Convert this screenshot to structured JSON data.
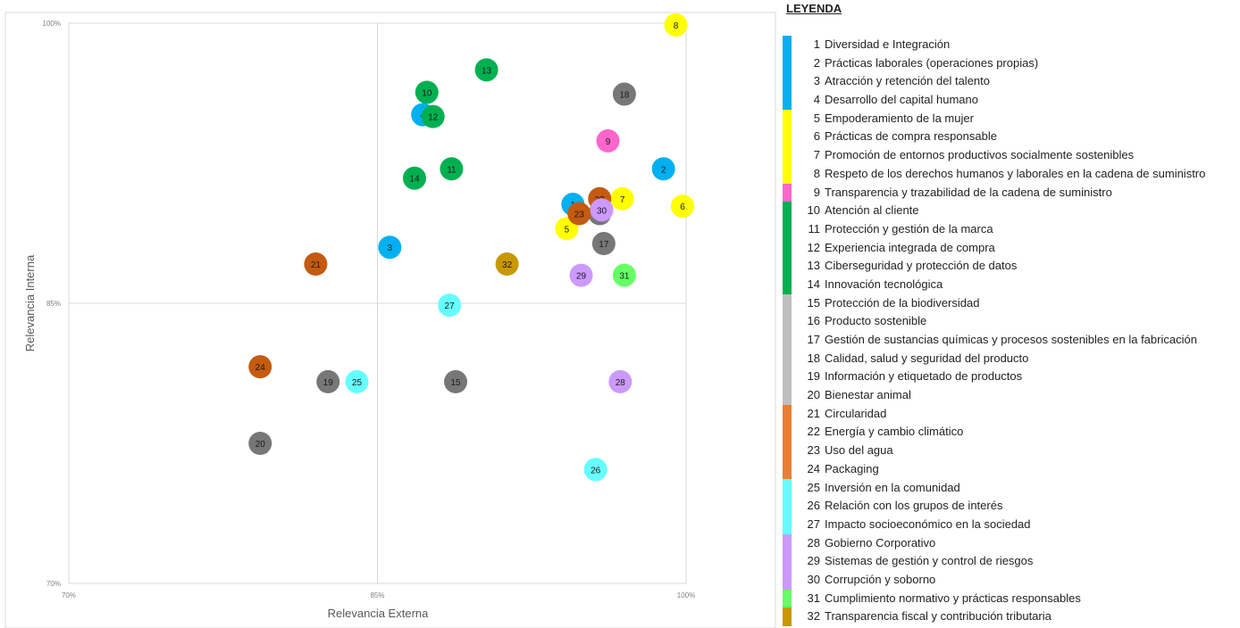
{
  "chart_data": {
    "type": "scatter",
    "xlabel": "Relevancia Externa",
    "ylabel": "Relevancia Interna",
    "xlim": [
      70,
      100
    ],
    "ylim": [
      70,
      100
    ],
    "x_ticks": [
      "70%",
      "85%",
      "100%"
    ],
    "y_ticks": [
      "70%",
      "85%",
      "100%"
    ],
    "divider_x": 85,
    "divider_y": 85,
    "legend_title": "LEYENDA",
    "legend_position": "right",
    "groups": [
      {
        "color": "#00B0F0",
        "items": [
          1,
          2,
          3,
          4
        ]
      },
      {
        "color": "#FFFF00",
        "items": [
          5,
          6,
          7,
          8
        ]
      },
      {
        "color": "#FF66CC",
        "items": [
          9
        ]
      },
      {
        "color": "#00B050",
        "items": [
          10,
          11,
          12,
          13,
          14
        ]
      },
      {
        "color": "#BFBFBF",
        "items": [
          15,
          16,
          17,
          18,
          19,
          20
        ]
      },
      {
        "color": "#ED7D31",
        "items": [
          21,
          22,
          23,
          24
        ]
      },
      {
        "color": "#66FFFF",
        "items": [
          25,
          26,
          27
        ]
      },
      {
        "color": "#CC99FF",
        "items": [
          28,
          29,
          30
        ]
      },
      {
        "color": "#66FF66",
        "items": [
          31
        ]
      },
      {
        "color": "#C89800",
        "items": [
          32
        ]
      }
    ],
    "points": [
      {
        "id": "1",
        "label": "Diversidad e Integración",
        "x": 94.5,
        "y": 90.3,
        "color": "#00B0F0"
      },
      {
        "id": "2",
        "label": "Prácticas laborales (operaciones propias)",
        "x": 98.9,
        "y": 92.2,
        "color": "#00B0F0"
      },
      {
        "id": "3",
        "label": "Atracción y retención del talento",
        "x": 85.6,
        "y": 88.0,
        "color": "#00B0F0"
      },
      {
        "id": "4",
        "label": "Desarrollo del capital humano",
        "x": 87.2,
        "y": 95.1,
        "color": "#00B0F0"
      },
      {
        "id": "5",
        "label": "Empoderamiento de la mujer",
        "x": 94.2,
        "y": 89.0,
        "color": "#FFFF00"
      },
      {
        "id": "6",
        "label": "Prácticas de compra responsable",
        "x": 100.0,
        "y": 90.2,
        "color": "#FFFF00"
      },
      {
        "id": "7",
        "label": "Promoción de entornos productivos socialmente sostenibles",
        "x": 96.9,
        "y": 90.6,
        "color": "#FFFF00"
      },
      {
        "id": "8",
        "label": "Respeto de los derechos humanos y laborales en la cadena de suministro",
        "x": 99.5,
        "y": 100.0,
        "color": "#FFFF00"
      },
      {
        "id": "9",
        "label": "Transparencia y trazabilidad de la cadena de suministro",
        "x": 96.2,
        "y": 93.7,
        "color": "#FF66CC"
      },
      {
        "id": "10",
        "label": "Atención al cliente",
        "x": 87.4,
        "y": 96.3,
        "color": "#00B050"
      },
      {
        "id": "11",
        "label": "Protección  y gestión de la marca",
        "x": 88.6,
        "y": 92.2,
        "color": "#00B050"
      },
      {
        "id": "12",
        "label": "Experiencia integrada de compra",
        "x": 87.7,
        "y": 95.0,
        "color": "#00B050"
      },
      {
        "id": "13",
        "label": "Ciberseguridad y protección de datos",
        "x": 90.3,
        "y": 97.5,
        "color": "#00B050"
      },
      {
        "id": "14",
        "label": "Innovación tecnológica",
        "x": 86.8,
        "y": 91.7,
        "color": "#00B050"
      },
      {
        "id": "15",
        "label": "Protección de la biodiversidad",
        "x": 88.8,
        "y": 80.8,
        "color": "#777777"
      },
      {
        "id": "16",
        "label": "Producto sostenible",
        "x": 95.8,
        "y": 89.8,
        "color": "#777777"
      },
      {
        "id": "17",
        "label": "Gestión de sustancias químicas y procesos sostenibles en la fabricación",
        "x": 96.0,
        "y": 88.2,
        "color": "#777777"
      },
      {
        "id": "18",
        "label": "Calidad, salud y seguridad del producto",
        "x": 97.0,
        "y": 96.2,
        "color": "#777777"
      },
      {
        "id": "19",
        "label": "Información y etiquetado de productos",
        "x": 82.6,
        "y": 80.8,
        "color": "#777777"
      },
      {
        "id": "20",
        "label": "Bienestar animal",
        "x": 79.3,
        "y": 77.5,
        "color": "#777777"
      },
      {
        "id": "21",
        "label": "Circularidad",
        "x": 82.0,
        "y": 87.1,
        "color": "#C55A11"
      },
      {
        "id": "22",
        "label": "Energía y cambio climático",
        "x": 95.8,
        "y": 90.6,
        "color": "#C55A11"
      },
      {
        "id": "23",
        "label": "Uso del agua",
        "x": 94.8,
        "y": 89.8,
        "color": "#C55A11"
      },
      {
        "id": "24",
        "label": "Packaging",
        "x": 79.3,
        "y": 81.6,
        "color": "#C55A11"
      },
      {
        "id": "25",
        "label": "Inversión en la comunidad",
        "x": 84.0,
        "y": 80.8,
        "color": "#66FFFF"
      },
      {
        "id": "26",
        "label": "Relación con los grupos de interés",
        "x": 95.6,
        "y": 76.1,
        "color": "#66FFFF"
      },
      {
        "id": "27",
        "label": "Impacto socioeconómico en la sociedad",
        "x": 88.5,
        "y": 84.9,
        "color": "#66FFFF"
      },
      {
        "id": "28",
        "label": "Gobierno Corporativo",
        "x": 96.8,
        "y": 80.8,
        "color": "#CC99FF"
      },
      {
        "id": "29",
        "label": "Sistemas de gestión y control de riesgos",
        "x": 94.9,
        "y": 86.5,
        "color": "#CC99FF"
      },
      {
        "id": "30",
        "label": "Corrupción y soborno",
        "x": 95.9,
        "y": 90.0,
        "color": "#CC99FF"
      },
      {
        "id": "31",
        "label": "Cumplimiento normativo y prácticas responsables",
        "x": 97.0,
        "y": 86.5,
        "color": "#66FF66"
      },
      {
        "id": "32",
        "label": "Transparencia fiscal y contribución tributaria",
        "x": 91.3,
        "y": 87.1,
        "color": "#C89800"
      }
    ]
  },
  "legend_entries": [
    {
      "num": "1",
      "label": "Diversidad e Integración"
    },
    {
      "num": "2",
      "label": "Prácticas laborales (operaciones propias)"
    },
    {
      "num": "3",
      "label": "Atracción y retención del talento"
    },
    {
      "num": "4",
      "label": "Desarrollo del capital humano"
    },
    {
      "num": "5",
      "label": "Empoderamiento de la mujer"
    },
    {
      "num": "6",
      "label": "Prácticas de compra responsable"
    },
    {
      "num": "7",
      "label": "Promoción de entornos productivos socialmente sostenibles"
    },
    {
      "num": "8",
      "label": "Respeto de los derechos humanos y laborales en la cadena de suministro"
    },
    {
      "num": "9",
      "label": "Transparencia y trazabilidad de la cadena de suministro"
    },
    {
      "num": "10",
      "label": "Atención al cliente"
    },
    {
      "num": "11",
      "label": "Protección  y gestión de la marca"
    },
    {
      "num": "12",
      "label": "Experiencia integrada de compra"
    },
    {
      "num": "13",
      "label": "Ciberseguridad y protección de datos"
    },
    {
      "num": "14",
      "label": "Innovación tecnológica"
    },
    {
      "num": "15",
      "label": "Protección de la biodiversidad"
    },
    {
      "num": "16",
      "label": "Producto sostenible"
    },
    {
      "num": "17",
      "label": " Gestión de sustancias químicas y procesos sostenibles en la fabricación"
    },
    {
      "num": "18",
      "label": "Calidad, salud y seguridad del producto"
    },
    {
      "num": "19",
      "label": "Información y etiquetado de productos"
    },
    {
      "num": "20",
      "label": "Bienestar animal"
    },
    {
      "num": "21",
      "label": "Circularidad"
    },
    {
      "num": "22",
      "label": "Energía y cambio climático"
    },
    {
      "num": "23",
      "label": "Uso del agua"
    },
    {
      "num": "24",
      "label": "Packaging"
    },
    {
      "num": "25",
      "label": "Inversión en la comunidad"
    },
    {
      "num": "26",
      "label": "Relación con los grupos de interés"
    },
    {
      "num": "27",
      "label": "Impacto socioeconómico en la sociedad"
    },
    {
      "num": "28",
      "label": "Gobierno Corporativo"
    },
    {
      "num": "29",
      "label": "Sistemas de gestión y control de riesgos"
    },
    {
      "num": "30",
      "label": "Corrupción y soborno"
    },
    {
      "num": "31",
      "label": "Cumplimiento normativo y prácticas responsables"
    },
    {
      "num": "32",
      "label": "Transparencia fiscal y contribución tributaria"
    }
  ]
}
